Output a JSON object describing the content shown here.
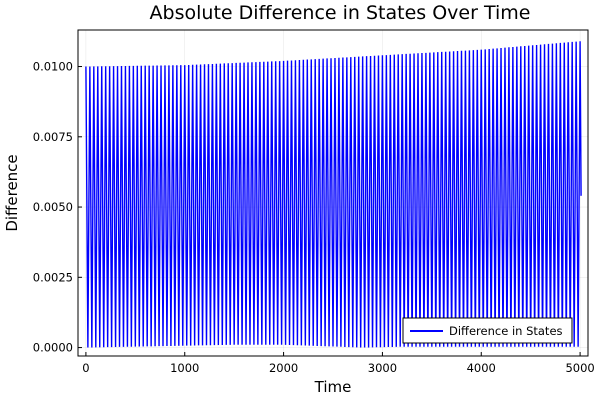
{
  "chart_data": {
    "type": "line",
    "title": "Absolute Difference in States Over Time",
    "xlabel": "Time",
    "ylabel": "Difference",
    "xlim": [
      -80,
      5080
    ],
    "ylim": [
      -0.0003,
      0.0113
    ],
    "x_ticks": [
      0,
      1000,
      2000,
      3000,
      4000,
      5000
    ],
    "x_tick_labels": [
      "0",
      "1000",
      "2000",
      "3000",
      "4000",
      "5000"
    ],
    "y_ticks": [
      0.0,
      0.0025,
      0.005,
      0.0075,
      0.01
    ],
    "y_tick_labels": [
      "0.0000",
      "0.0025",
      "0.0050",
      "0.0075",
      "0.0100"
    ],
    "grid": true,
    "legend_position": "bottom-right",
    "series": [
      {
        "name": "Difference in States",
        "color": "#0000ff",
        "oscillation": {
          "x_start": 0,
          "x_end": 5000,
          "cycles": 125,
          "lower_envelope": {
            "x": [
              0,
              1500,
              2000,
              2800,
              3200,
              5000
            ],
            "y": [
              0.0,
              0.0001,
              0.0001,
              0.0,
              3e-05,
              3e-05
            ]
          },
          "upper_envelope": {
            "x": [
              0,
              1000,
              2000,
              3000,
              4000,
              5000
            ],
            "y": [
              0.01,
              0.01005,
              0.0102,
              0.0104,
              0.0106,
              0.0109
            ]
          },
          "final_point": {
            "x": 5010,
            "y": 0.0054
          }
        }
      }
    ]
  }
}
